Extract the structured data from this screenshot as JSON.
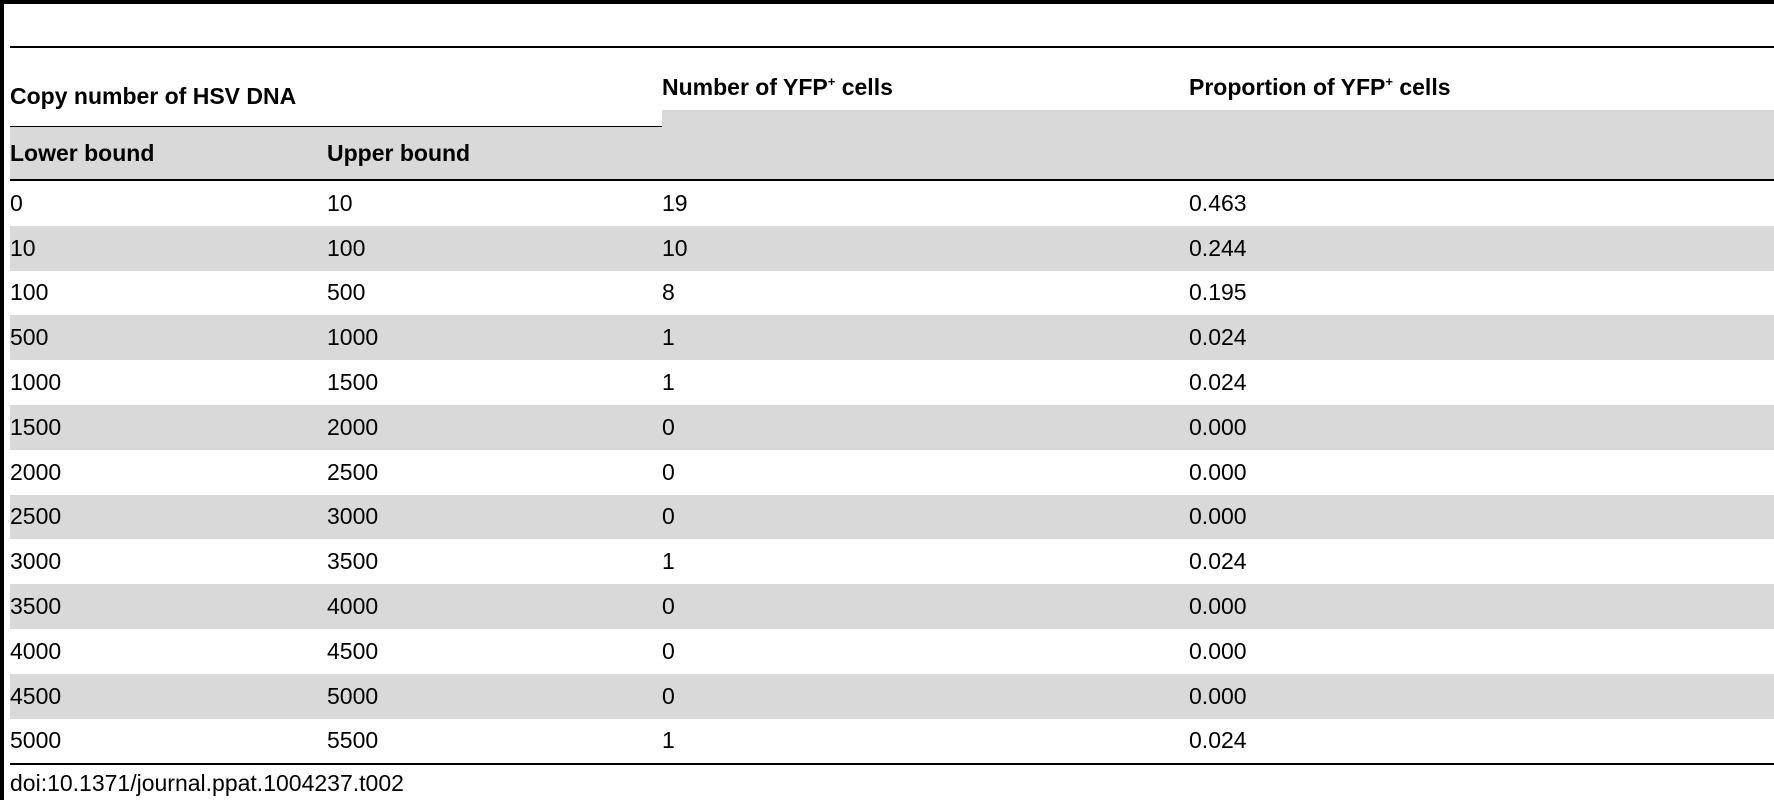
{
  "table": {
    "group_header": "Copy number of HSV DNA",
    "col_lower": "Lower bound",
    "col_upper": "Upper bound",
    "col_number_prefix": "Number of YFP",
    "col_number_sup": "+",
    "col_number_suffix": " cells",
    "col_proportion_prefix": "Proportion of YFP",
    "col_proportion_sup": "+",
    "col_proportion_suffix": " cells",
    "rows": [
      {
        "lower": "0",
        "upper": "10",
        "number": "19",
        "proportion": "0.463"
      },
      {
        "lower": "10",
        "upper": "100",
        "number": "10",
        "proportion": "0.244"
      },
      {
        "lower": "100",
        "upper": "500",
        "number": "8",
        "proportion": "0.195"
      },
      {
        "lower": "500",
        "upper": "1000",
        "number": "1",
        "proportion": "0.024"
      },
      {
        "lower": "1000",
        "upper": "1500",
        "number": "1",
        "proportion": "0.024"
      },
      {
        "lower": "1500",
        "upper": "2000",
        "number": "0",
        "proportion": "0.000"
      },
      {
        "lower": "2000",
        "upper": "2500",
        "number": "0",
        "proportion": "0.000"
      },
      {
        "lower": "2500",
        "upper": "3000",
        "number": "0",
        "proportion": "0.000"
      },
      {
        "lower": "3000",
        "upper": "3500",
        "number": "1",
        "proportion": "0.024"
      },
      {
        "lower": "3500",
        "upper": "4000",
        "number": "0",
        "proportion": "0.000"
      },
      {
        "lower": "4000",
        "upper": "4500",
        "number": "0",
        "proportion": "0.000"
      },
      {
        "lower": "4500",
        "upper": "5000",
        "number": "0",
        "proportion": "0.000"
      },
      {
        "lower": "5000",
        "upper": "5500",
        "number": "1",
        "proportion": "0.024"
      }
    ]
  },
  "footer": {
    "doi": "doi:10.1371/journal.ppat.1004237.t002"
  },
  "colors": {
    "row_shade": "#d9d9d9",
    "rule": "#000000"
  }
}
